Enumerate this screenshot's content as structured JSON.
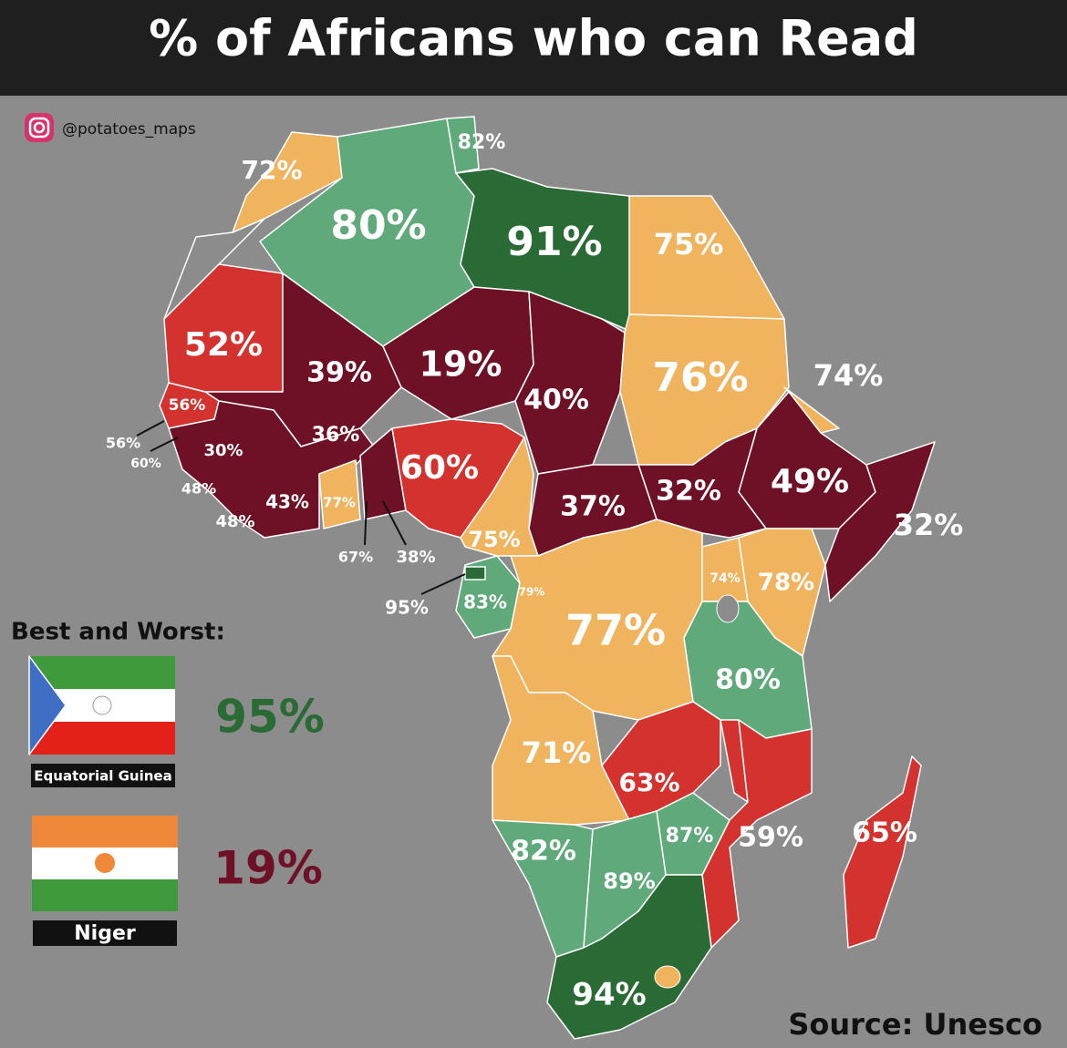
{
  "header": {
    "title": "% of Africans who can Read"
  },
  "credit": "@potatoes_maps",
  "map": {
    "labels": [
      "72%",
      "82%",
      "80%",
      "91%",
      "75%",
      "52%",
      "39%",
      "19%",
      "40%",
      "76%",
      "74%",
      "56%",
      "56%",
      "60%",
      "30%",
      "36%",
      "48%",
      "43%",
      "77%",
      "48%",
      "60%",
      "37%",
      "32%",
      "49%",
      "32%",
      "75%",
      "67%",
      "38%",
      "95%",
      "83%",
      "79%",
      "74%",
      "78%",
      "77%",
      "80%",
      "71%",
      "63%",
      "82%",
      "87%",
      "59%",
      "65%",
      "89%",
      "94%"
    ]
  },
  "legend": {
    "title": "Best and Worst:",
    "best": {
      "country": "Equatorial Guinea",
      "value": "95%"
    },
    "worst": {
      "country": "Niger",
      "value": "19%"
    }
  },
  "source": "Source: Unesco"
}
